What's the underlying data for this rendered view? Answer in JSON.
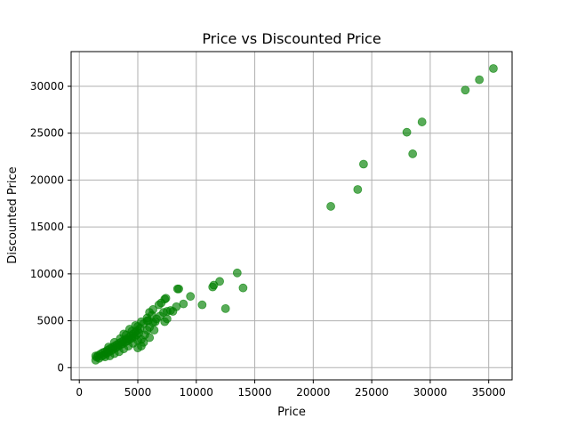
{
  "chart_data": {
    "type": "scatter",
    "title": "Price vs Discounted Price",
    "xlabel": "Price",
    "ylabel": "Discounted Price",
    "xlim": [
      -700,
      37000
    ],
    "ylim": [
      -1300,
      33700
    ],
    "xticks": [
      0,
      5000,
      10000,
      15000,
      20000,
      25000,
      30000,
      35000
    ],
    "yticks": [
      0,
      5000,
      10000,
      15000,
      20000,
      25000,
      30000
    ],
    "grid": true,
    "marker_color": "#008000",
    "marker_alpha": 0.65,
    "series": [
      {
        "points": [
          [
            1400,
            800
          ],
          [
            1400,
            1250
          ],
          [
            1500,
            1100
          ],
          [
            1600,
            1300
          ],
          [
            1700,
            1000
          ],
          [
            1800,
            1450
          ],
          [
            1900,
            1200
          ],
          [
            2000,
            1600
          ],
          [
            2100,
            1350
          ],
          [
            2200,
            1700
          ],
          [
            2300,
            1500
          ],
          [
            2400,
            1850
          ],
          [
            2500,
            1650
          ],
          [
            2600,
            2000
          ],
          [
            2700,
            1800
          ],
          [
            2800,
            2150
          ],
          [
            2900,
            1950
          ],
          [
            3000,
            2300
          ],
          [
            3100,
            2100
          ],
          [
            3200,
            2450
          ],
          [
            3300,
            2250
          ],
          [
            3400,
            2600
          ],
          [
            3500,
            2400
          ],
          [
            3600,
            2750
          ],
          [
            3700,
            2550
          ],
          [
            3800,
            2900
          ],
          [
            3900,
            2700
          ],
          [
            4000,
            3050
          ],
          [
            4100,
            2850
          ],
          [
            4200,
            3200
          ],
          [
            4300,
            3000
          ],
          [
            4400,
            3400
          ],
          [
            4500,
            3150
          ],
          [
            4600,
            3600
          ],
          [
            4700,
            3300
          ],
          [
            4800,
            3800
          ],
          [
            4900,
            3500
          ],
          [
            5000,
            4000
          ],
          [
            5100,
            3700
          ],
          [
            5200,
            4200
          ],
          [
            2200,
            1150
          ],
          [
            2600,
            1250
          ],
          [
            3000,
            1500
          ],
          [
            3400,
            1700
          ],
          [
            3800,
            2000
          ],
          [
            4200,
            2300
          ],
          [
            4600,
            2600
          ],
          [
            5000,
            2900
          ],
          [
            2500,
            2200
          ],
          [
            3000,
            2700
          ],
          [
            3500,
            3100
          ],
          [
            4000,
            3500
          ],
          [
            4500,
            3900
          ],
          [
            5000,
            4400
          ],
          [
            5500,
            4700
          ],
          [
            5800,
            5000
          ],
          [
            3800,
            3600
          ],
          [
            4300,
            4100
          ],
          [
            4800,
            4500
          ],
          [
            5300,
            4900
          ],
          [
            5800,
            5300
          ],
          [
            6200,
            5600
          ],
          [
            6000,
            5900
          ],
          [
            5300,
            3000
          ],
          [
            5600,
            3500
          ],
          [
            5800,
            4000
          ],
          [
            6000,
            4300
          ],
          [
            6300,
            4800
          ],
          [
            6600,
            5200
          ],
          [
            6900,
            5500
          ],
          [
            5500,
            2700
          ],
          [
            5300,
            2300
          ],
          [
            5000,
            2100
          ],
          [
            6000,
            3200
          ],
          [
            6400,
            4000
          ],
          [
            6500,
            4900
          ],
          [
            5900,
            5000
          ],
          [
            6300,
            6200
          ],
          [
            6800,
            6700
          ],
          [
            7000,
            6900
          ],
          [
            7300,
            7300
          ],
          [
            7400,
            7400
          ],
          [
            7200,
            5900
          ],
          [
            7500,
            6000
          ],
          [
            7800,
            6100
          ],
          [
            8000,
            6000
          ],
          [
            7300,
            4900
          ],
          [
            7500,
            5200
          ],
          [
            8500,
            8400
          ],
          [
            8400,
            8400
          ],
          [
            8300,
            6500
          ],
          [
            8900,
            6800
          ],
          [
            9500,
            7600
          ],
          [
            10500,
            6700
          ],
          [
            11400,
            8600
          ],
          [
            11500,
            8800
          ],
          [
            12000,
            9200
          ],
          [
            12500,
            6300
          ],
          [
            13500,
            10100
          ],
          [
            14000,
            8500
          ],
          [
            21500,
            17200
          ],
          [
            23800,
            19000
          ],
          [
            24300,
            21700
          ],
          [
            28000,
            25100
          ],
          [
            28500,
            22800
          ],
          [
            29300,
            26200
          ],
          [
            33000,
            29600
          ],
          [
            34200,
            30700
          ],
          [
            35400,
            31900
          ]
        ]
      }
    ]
  }
}
